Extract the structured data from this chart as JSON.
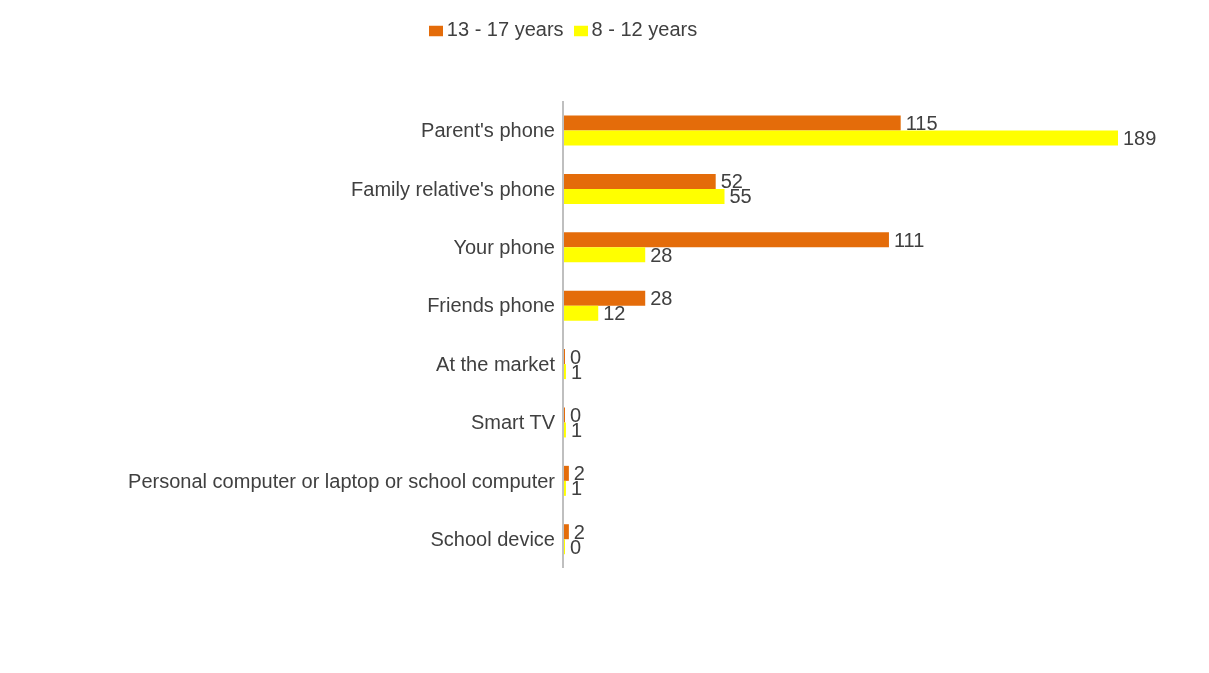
{
  "chart_data": {
    "type": "bar",
    "orientation": "horizontal",
    "categories": [
      "Parent's phone",
      "Family relative's phone",
      "Your phone",
      "Friends phone",
      "At the market",
      "Smart TV",
      "Personal computer or laptop or school computer",
      "School device"
    ],
    "series": [
      {
        "name": "13 - 17 years",
        "color": "#e46c0a",
        "values": [
          115,
          52,
          111,
          28,
          0,
          0,
          2,
          2
        ]
      },
      {
        "name": "8 - 12 years",
        "color": "#ffff00",
        "values": [
          189,
          55,
          28,
          12,
          1,
          1,
          1,
          0
        ]
      }
    ],
    "data_labels": true,
    "legend": "top",
    "tick_labels": "y"
  }
}
